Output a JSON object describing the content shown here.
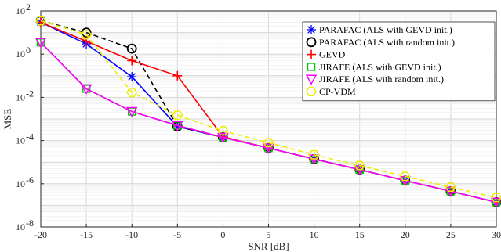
{
  "chart_data": {
    "type": "line",
    "title": "",
    "xlabel": "SNR [dB]",
    "ylabel": "MSE",
    "yscale": "log",
    "xlim": [
      -20,
      30
    ],
    "ylim_exponent": [
      -8,
      2
    ],
    "grid": true,
    "legend_position": "top-right",
    "x": [
      -20,
      -15,
      -10,
      -5,
      0,
      5,
      10,
      15,
      20,
      25,
      30
    ],
    "x_ticks": [
      "-20",
      "-15",
      "-10",
      "-5",
      "0",
      "5",
      "10",
      "15",
      "20",
      "25",
      "30"
    ],
    "y_ticks": [
      {
        "base": "10",
        "exp": "2",
        "value": 2
      },
      {
        "base": "10",
        "exp": "0",
        "value": 0
      },
      {
        "base": "10",
        "exp": "-2",
        "value": -2
      },
      {
        "base": "10",
        "exp": "-4",
        "value": -4
      },
      {
        "base": "10",
        "exp": "-6",
        "value": -6
      },
      {
        "base": "10",
        "exp": "-8",
        "value": -8
      }
    ],
    "series": [
      {
        "name": "PARAFAC (ALS with GEVD init.)",
        "color": "#0000ff",
        "marker": "asterisk",
        "dash": "solid",
        "x": [
          -20,
          -15,
          -10,
          -5,
          0,
          5,
          10,
          15,
          20,
          25,
          30
        ],
        "values": [
          30,
          3,
          0.09,
          0.00045,
          0.00014,
          4.5e-05,
          1.4e-05,
          4.5e-06,
          1.4e-06,
          4.5e-07,
          1.4e-07
        ]
      },
      {
        "name": "PARAFAC (ALS with random init.)",
        "color": "#000000",
        "marker": "circle",
        "dash": "dashed",
        "x": [
          -20,
          -15,
          -10,
          -5,
          0,
          5,
          10,
          15,
          20,
          25,
          30
        ],
        "values": [
          35,
          10,
          1.8,
          0.00045,
          0.00014,
          4.5e-05,
          1.4e-05,
          4.5e-06,
          1.4e-06,
          4.5e-07,
          1.4e-07
        ]
      },
      {
        "name": "GEVD",
        "color": "#ff0000",
        "marker": "plus",
        "dash": "solid",
        "x": [
          -20,
          -15,
          -10,
          -5,
          0,
          5,
          10,
          15,
          20,
          25,
          30
        ],
        "values": [
          30,
          4,
          0.5,
          0.1,
          0.00015,
          4.5e-05,
          1.4e-05,
          4.5e-06,
          1.4e-06,
          4.5e-07,
          1.4e-07
        ]
      },
      {
        "name": "JIRAFE (ALS with GEVD init.)",
        "color": "#00cc00",
        "marker": "square",
        "dash": "solid",
        "x": [
          -20,
          -15,
          -10,
          -5,
          0,
          5,
          10,
          15,
          20,
          25,
          30
        ],
        "values": [
          3.5,
          0.025,
          0.0022,
          0.0005,
          0.00014,
          4.5e-05,
          1.4e-05,
          4.5e-06,
          1.4e-06,
          4.5e-07,
          1.4e-07
        ]
      },
      {
        "name": "JIRAFE (ALS with random init.)",
        "color": "#ff00ff",
        "marker": "triangle-down",
        "dash": "solid",
        "x": [
          -20,
          -15,
          -10,
          -5,
          0,
          5,
          10,
          15,
          20,
          25,
          30
        ],
        "values": [
          3.5,
          0.025,
          0.0022,
          0.0005,
          0.00014,
          4.5e-05,
          1.4e-05,
          4.5e-06,
          1.4e-06,
          4.5e-07,
          1.4e-07
        ]
      },
      {
        "name": "CP-VDM",
        "color": "#eeee00",
        "marker": "hexagon",
        "dash": "dashed",
        "x": [
          -20,
          -15,
          -10,
          -5,
          0,
          5,
          10,
          15,
          20,
          25,
          30
        ],
        "values": [
          35,
          8,
          0.017,
          0.0015,
          0.00028,
          8e-05,
          2.2e-05,
          7e-06,
          2.2e-06,
          7e-07,
          2.3e-07
        ]
      }
    ]
  }
}
